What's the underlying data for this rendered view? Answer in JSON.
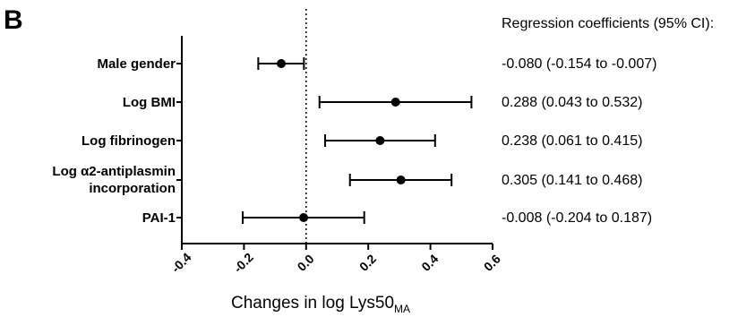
{
  "panel_letter": "B",
  "ci_header": "Regression coefficients (95% CI):",
  "categories": [
    {
      "label_lines": [
        "Male gender"
      ],
      "coef_text": "-0.080 (-0.154 to -0.007)"
    },
    {
      "label_lines": [
        "Log BMI"
      ],
      "coef_text": "0.288 (0.043 to 0.532)"
    },
    {
      "label_lines": [
        "Log fibrinogen"
      ],
      "coef_text": "0.238 (0.061 to 0.415)"
    },
    {
      "label_lines": [
        "Log α2-antiplasmin",
        "incorporation"
      ],
      "coef_text": "0.305 (0.141 to 0.468)"
    },
    {
      "label_lines": [
        "PAI-1"
      ],
      "coef_text": "-0.008 (-0.204 to 0.187)"
    }
  ],
  "xlabel_main": "Changes in log Lys50",
  "xlabel_sub": "MA",
  "chart_data": {
    "type": "scatter",
    "title": "",
    "xlabel": "Changes in log Lys50MA",
    "ylabel": "",
    "xlim": [
      -0.4,
      0.6
    ],
    "xticks": [
      "-0.4",
      "-0.2",
      "0.0",
      "0.2",
      "0.4",
      "0.6"
    ],
    "reference_line_x": 0.0,
    "grid": false,
    "legend": "none",
    "point_color": "#000000",
    "categories": [
      "Male gender",
      "Log BMI",
      "Log fibrinogen",
      "Log α2-antiplasmin incorporation",
      "PAI-1"
    ],
    "estimates": [
      -0.08,
      0.288,
      0.238,
      0.305,
      -0.008
    ],
    "ci_lower": [
      -0.154,
      0.043,
      0.061,
      0.141,
      -0.204
    ],
    "ci_upper": [
      -0.007,
      0.532,
      0.415,
      0.468,
      0.187
    ]
  }
}
